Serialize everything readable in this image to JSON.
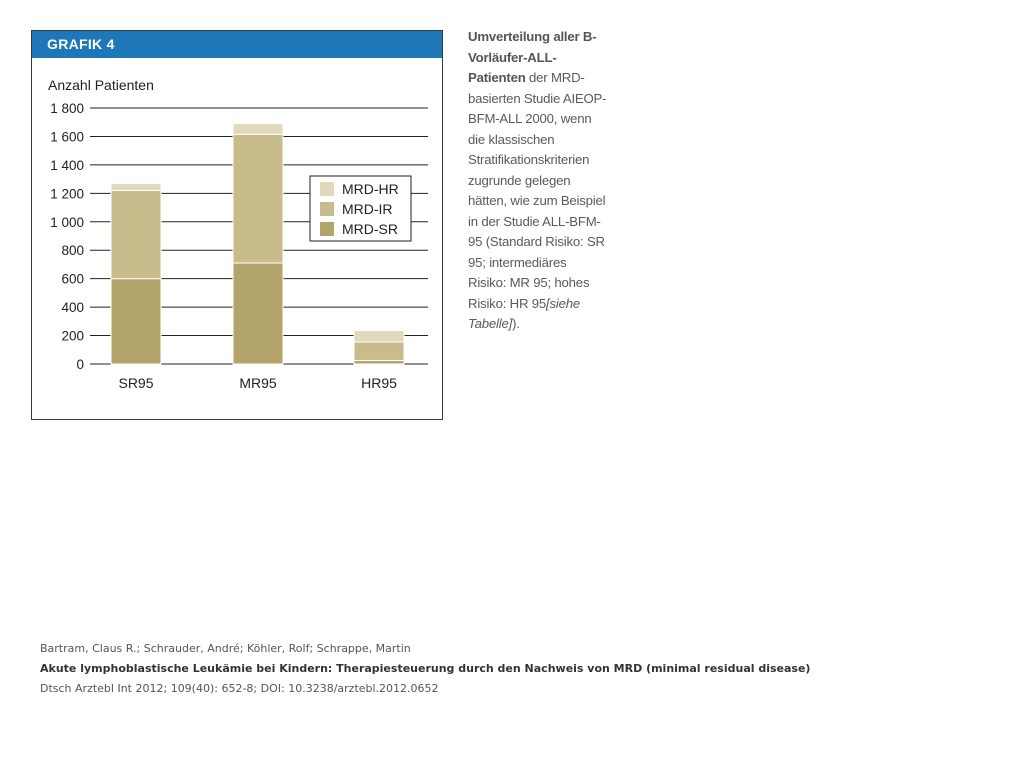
{
  "figure": {
    "header": "GRAFIK 4"
  },
  "caption": {
    "bold": "Umverteilung aller B-Vorläufer-ALL-Patienten",
    "text": "der MRD-basierten Studie AIEOP-BFM-ALL 2000, wenn die klassischen Stratifikationskriterien zugrunde gelegen hätten, wie zum Beispiel in der Studie ALL-BFM-95 (Standard Risiko: SR 95; intermediäres Risiko: MR 95; hohes Risiko: HR 95",
    "italic": "[siehe Tabelle]",
    "end": ")."
  },
  "citation": {
    "authors": "Bartram, Claus R.; Schrauder, André; Köhler, Rolf; Schrappe, Martin",
    "title": "Akute lymphoblastische Leukämie bei Kindern: Therapiesteuerung durch den Nachweis von MRD (minimal residual disease)",
    "source": "Dtsch Arztebl Int 2012; 109(40): 652-8; DOI: 10.3238/arztebl.2012.0652"
  },
  "chart_data": {
    "type": "bar",
    "stacked": true,
    "ylabel": "Anzahl Patienten",
    "xlabel": "",
    "ylim": [
      0,
      1800
    ],
    "yticks": [
      0,
      200,
      400,
      600,
      800,
      1000,
      1200,
      1400,
      1600,
      1800
    ],
    "ytick_labels": [
      "0",
      "200",
      "400",
      "600",
      "800",
      "1 000",
      "1 200",
      "1 400",
      "1 600",
      "1 800"
    ],
    "grid": true,
    "legend_position": "right",
    "categories": [
      "SR95",
      "MR95",
      "HR95"
    ],
    "series": [
      {
        "name": "MRD-SR",
        "values": [
          600,
          710,
          25
        ],
        "color": "#b3a46b"
      },
      {
        "name": "MRD-IR",
        "values": [
          620,
          905,
          130
        ],
        "color": "#c8bb8c"
      },
      {
        "name": "MRD-HR",
        "values": [
          50,
          75,
          80
        ],
        "color": "#e2d9bd"
      }
    ]
  }
}
